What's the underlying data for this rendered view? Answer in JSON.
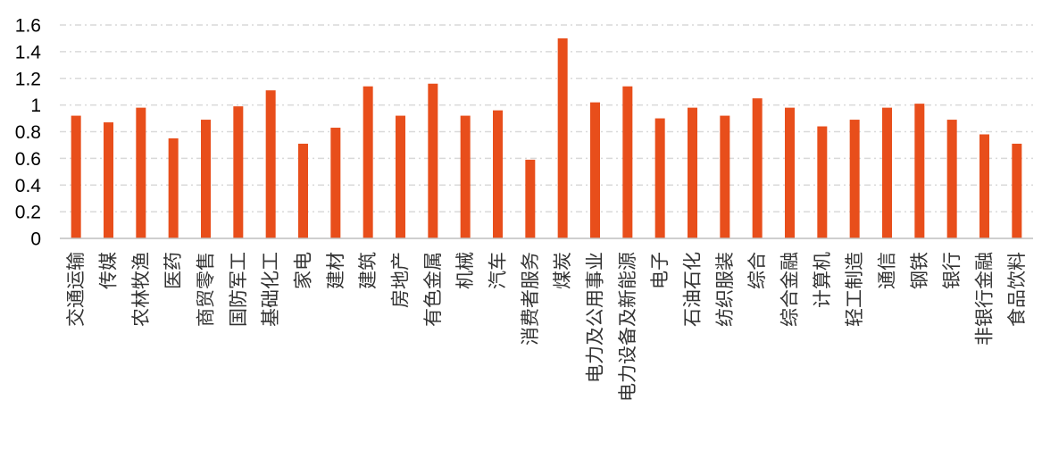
{
  "chart_data": {
    "type": "bar",
    "title": "",
    "xlabel": "",
    "ylabel": "",
    "ylim": [
      0,
      1.6
    ],
    "y_ticks": [
      "0",
      "0.2",
      "0.4",
      "0.6",
      "0.8",
      "1",
      "1.2",
      "1.4",
      "1.6"
    ],
    "grid": true,
    "legend": "none",
    "bar_color": "#E84E1B",
    "categories": [
      "交通运输",
      "传媒",
      "农林牧渔",
      "医药",
      "商贸零售",
      "国防军工",
      "基础化工",
      "家电",
      "建材",
      "建筑",
      "房地产",
      "有色金属",
      "机械",
      "汽车",
      "消费者服务",
      "煤炭",
      "电力及公用事业",
      "电力设备及新能源",
      "电子",
      "石油石化",
      "纺织服装",
      "综合",
      "综合金融",
      "计算机",
      "轻工制造",
      "通信",
      "钢铁",
      "银行",
      "非银行金融",
      "食品饮料"
    ],
    "values": [
      0.92,
      0.87,
      0.98,
      0.75,
      0.89,
      0.99,
      1.11,
      0.71,
      0.83,
      1.14,
      0.92,
      1.16,
      0.92,
      0.96,
      0.59,
      1.5,
      1.02,
      1.14,
      0.9,
      0.98,
      0.92,
      1.05,
      0.98,
      0.84,
      0.89,
      0.98,
      1.01,
      0.89,
      0.78,
      0.71
    ]
  }
}
